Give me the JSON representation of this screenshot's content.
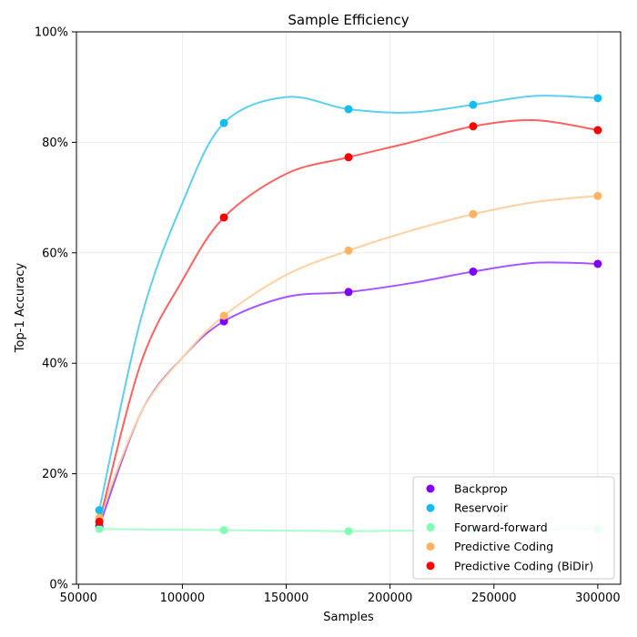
{
  "chart_data": {
    "type": "scatter",
    "title": "Sample Efficiency",
    "xlabel": "Samples",
    "ylabel": "Top-1 Accuracy",
    "xlim": [
      49000,
      311000
    ],
    "ylim": [
      0,
      1
    ],
    "x_ticks": [
      50000,
      100000,
      150000,
      200000,
      250000,
      300000
    ],
    "x_tick_labels": [
      "50000",
      "100000",
      "150000",
      "200000",
      "250000",
      "300000"
    ],
    "y_ticks": [
      0,
      0.2,
      0.4,
      0.6,
      0.8,
      1.0
    ],
    "y_tick_labels": [
      "0%",
      "20%",
      "40%",
      "60%",
      "80%",
      "100%"
    ],
    "grid": true,
    "legend_position": "lower-right",
    "x": [
      60000,
      120000,
      180000,
      240000,
      300000
    ],
    "series": [
      {
        "name": "Backprop",
        "values": [
          0.105,
          0.476,
          0.529,
          0.566,
          0.58
        ],
        "marker_color": "#7f00ff",
        "line_color": "#a755ff",
        "curve": [
          [
            60000,
            0.105
          ],
          [
            80000,
            0.31
          ],
          [
            100000,
            0.41
          ],
          [
            120000,
            0.476
          ],
          [
            150000,
            0.52
          ],
          [
            180000,
            0.529
          ],
          [
            210000,
            0.545
          ],
          [
            240000,
            0.566
          ],
          [
            270000,
            0.582
          ],
          [
            300000,
            0.58
          ]
        ]
      },
      {
        "name": "Reservoir",
        "values": [
          0.134,
          0.835,
          0.86,
          0.868,
          0.88
        ],
        "marker_color": "#12beef",
        "line_color": "#5ed0ef",
        "curve": [
          [
            60000,
            0.134
          ],
          [
            80000,
            0.48
          ],
          [
            100000,
            0.69
          ],
          [
            120000,
            0.835
          ],
          [
            150000,
            0.882
          ],
          [
            180000,
            0.86
          ],
          [
            210000,
            0.854
          ],
          [
            240000,
            0.868
          ],
          [
            270000,
            0.884
          ],
          [
            300000,
            0.88
          ]
        ]
      },
      {
        "name": "Forward-forward",
        "values": [
          0.1,
          0.098,
          0.096,
          0.098,
          0.1
        ],
        "marker_color": "#80ffb4",
        "line_color": "#a8ffcc",
        "curve": [
          [
            60000,
            0.1
          ],
          [
            120000,
            0.098
          ],
          [
            180000,
            0.096
          ],
          [
            240000,
            0.098
          ],
          [
            300000,
            0.1
          ]
        ]
      },
      {
        "name": "Predictive Coding",
        "values": [
          0.12,
          0.486,
          0.604,
          0.67,
          0.703
        ],
        "marker_color": "#ffb360",
        "line_color": "#ffd0a0",
        "curve": [
          [
            60000,
            0.12
          ],
          [
            80000,
            0.31
          ],
          [
            100000,
            0.41
          ],
          [
            120000,
            0.486
          ],
          [
            150000,
            0.56
          ],
          [
            180000,
            0.604
          ],
          [
            210000,
            0.64
          ],
          [
            240000,
            0.67
          ],
          [
            270000,
            0.692
          ],
          [
            300000,
            0.703
          ]
        ]
      },
      {
        "name": "Predictive Coding (BiDir)",
        "values": [
          0.113,
          0.664,
          0.773,
          0.829,
          0.822
        ],
        "marker_color": "#ff0000",
        "line_color": "#ff6060",
        "curve": [
          [
            60000,
            0.113
          ],
          [
            80000,
            0.4
          ],
          [
            100000,
            0.55
          ],
          [
            120000,
            0.664
          ],
          [
            150000,
            0.743
          ],
          [
            180000,
            0.773
          ],
          [
            210000,
            0.8
          ],
          [
            240000,
            0.829
          ],
          [
            270000,
            0.84
          ],
          [
            300000,
            0.822
          ]
        ]
      }
    ]
  }
}
